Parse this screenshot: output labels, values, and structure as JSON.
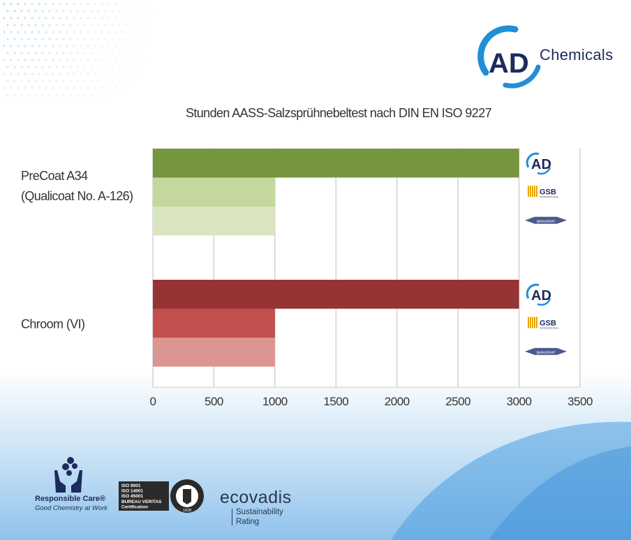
{
  "brand": {
    "logo_mark": "AD",
    "logo_name": "Chemicals",
    "colors": {
      "navy": "#1d2a5c",
      "blue": "#1f8fd6"
    }
  },
  "chart_data": {
    "type": "bar",
    "orientation": "horizontal",
    "title": "Stunden AASS-Salzsprühnebeltest nach DIN EN ISO 9227",
    "xlim": [
      0,
      3500
    ],
    "xticks": [
      0,
      500,
      1000,
      1500,
      2000,
      2500,
      3000,
      3500
    ],
    "grid": true,
    "categories": [
      {
        "label_lines": [
          "PreCoat A34",
          "(Qualicoat No. A-126)"
        ],
        "bars": [
          {
            "value": 3000,
            "color": "#76963d",
            "badge": "AD"
          },
          {
            "value": 1000,
            "color": "#c4d89c",
            "badge": "GSB"
          },
          {
            "value": 1000,
            "color": "#d9e6c1",
            "badge": "QUALICOAT"
          }
        ]
      },
      {
        "label_lines": [
          "Chroom (VI)"
        ],
        "bars": [
          {
            "value": 3000,
            "color": "#963435",
            "badge": "AD"
          },
          {
            "value": 1000,
            "color": "#c2504e",
            "badge": "GSB"
          },
          {
            "value": 1000,
            "color": "#dd9594",
            "badge": "QUALICOAT"
          }
        ]
      }
    ]
  },
  "badges": {
    "ad": "AD",
    "gsb": "GSB",
    "gsb_sub": "INTERNATIONAL",
    "qualicoat": "QUALICOAT"
  },
  "footer": {
    "responsible_care": {
      "title": "Responsible Care®",
      "subtitle": "Good Chemistry at Work"
    },
    "bureau_veritas": {
      "lines": [
        "ISO 9001",
        "ISO 14001",
        "ISO 45001",
        "BUREAU VERITAS",
        "Certification"
      ],
      "seal_top": "BUREAU VERITAS",
      "seal_year": "1828"
    },
    "ecovadis": {
      "name": "ecovadis",
      "sub1": "Sustainability",
      "sub2": "Rating"
    }
  }
}
